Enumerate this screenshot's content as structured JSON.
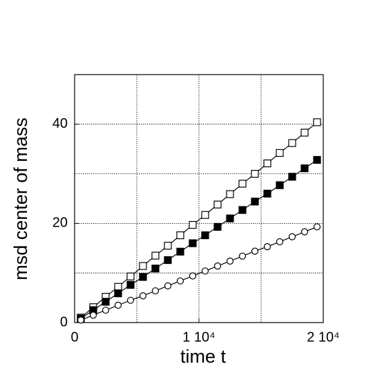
{
  "chart_data": {
    "type": "line",
    "x_label": "time t",
    "y_label": "msd center of mass",
    "x": [
      500,
      1500,
      2500,
      3500,
      4500,
      5500,
      6500,
      7500,
      8500,
      9500,
      10500,
      11500,
      12500,
      13500,
      14500,
      15500,
      16500,
      17500,
      18500,
      19500
    ],
    "series": [
      {
        "marker": "open-square",
        "color": "#000000",
        "values": [
          1.0,
          3.1,
          5.2,
          7.2,
          9.3,
          11.4,
          13.5,
          15.5,
          17.6,
          19.7,
          21.7,
          23.8,
          25.9,
          28.0,
          30.0,
          32.1,
          34.2,
          36.2,
          38.3,
          40.4
        ]
      },
      {
        "marker": "filled-square",
        "color": "#000000",
        "values": [
          0.8,
          2.5,
          4.2,
          5.9,
          7.6,
          9.2,
          10.9,
          12.6,
          14.3,
          16.0,
          17.6,
          19.3,
          21.0,
          22.7,
          24.4,
          26.0,
          27.7,
          29.4,
          31.1,
          32.8
        ]
      },
      {
        "marker": "open-circle",
        "color": "#000000",
        "values": [
          0.5,
          1.5,
          2.5,
          3.5,
          4.5,
          5.4,
          6.4,
          7.4,
          8.4,
          9.4,
          10.4,
          11.4,
          12.4,
          13.4,
          14.4,
          15.3,
          16.3,
          17.3,
          18.3,
          19.3
        ]
      }
    ],
    "xlim": [
      0,
      20000
    ],
    "ylim": [
      0,
      50
    ],
    "xticks": [
      0,
      {
        "value": 10000,
        "label": "1 10⁴"
      },
      {
        "value": 20000,
        "label": "2 10⁴"
      }
    ],
    "yticks": [
      0,
      20,
      40
    ],
    "xgrid": [
      5000,
      10000,
      15000
    ],
    "ygrid": [
      10,
      20,
      30,
      40
    ],
    "grid": true
  }
}
